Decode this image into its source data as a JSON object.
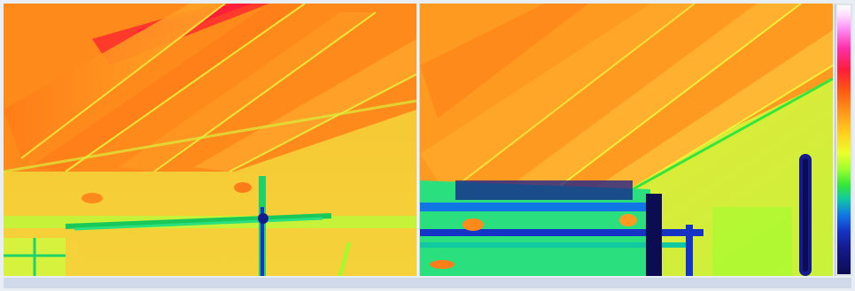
{
  "image": {
    "description": "",
    "panels": [
      {
        "id": "thermal-left",
        "dominant_color": "#f2b632"
      },
      {
        "id": "thermal-right",
        "dominant_color": "#f2b632"
      }
    ]
  },
  "palette": {
    "hot": "#ff1e3a",
    "warm": "#ff8a1a",
    "mid": "#f2b632",
    "cool": "#8dff33",
    "cold": "#1534c5",
    "coldest": "#0c0c52"
  },
  "scale": {
    "ticks": [
      "",
      "",
      "",
      "",
      "",
      "",
      "",
      "",
      "",
      "",
      "",
      "",
      "",
      "",
      "",
      ""
    ]
  }
}
